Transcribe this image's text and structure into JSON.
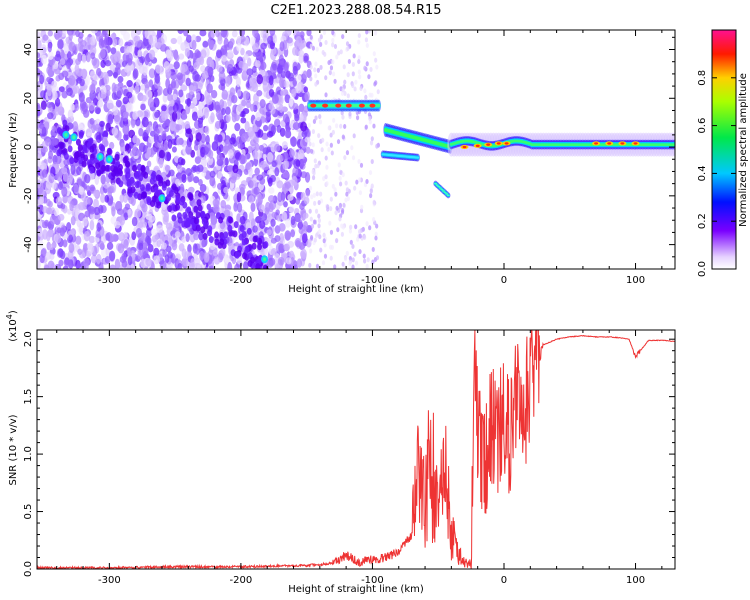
{
  "title": "C2E1.2023.288.08.54.R15",
  "chart_data": [
    {
      "type": "heatmap",
      "xlabel": "Height of straight line (km)",
      "ylabel": "Frequency (Hz)",
      "xlim": [
        -355,
        130
      ],
      "ylim": [
        -50,
        48
      ],
      "xticks": [
        -300,
        -200,
        -100,
        0,
        100
      ],
      "yticks": [
        -40,
        -20,
        0,
        20,
        40
      ],
      "colorbar": {
        "label": "Normalized spectral amplitude",
        "range": [
          0,
          1
        ],
        "ticks": [
          0.0,
          0.2,
          0.4,
          0.6,
          0.8
        ],
        "colormap": "white-purple-blue-cyan-green-yellow-red-magenta"
      },
      "features": [
        {
          "name": "scattered noise",
          "x": [
            -355,
            -148
          ],
          "y": [
            -50,
            48
          ]
        },
        {
          "name": "sparse noise",
          "x": [
            -148,
            -95
          ],
          "y": [
            -50,
            48
          ]
        },
        {
          "name": "horizontal band at 17 Hz",
          "x": [
            -148,
            -95
          ],
          "y": 17
        },
        {
          "name": "descending trace",
          "x": [
            -90,
            -40
          ],
          "y": [
            7,
            0
          ]
        },
        {
          "name": "branch trace",
          "x": [
            -52,
            -42
          ],
          "y": [
            -15,
            -20
          ]
        },
        {
          "name": "main band at 0-2 Hz",
          "x": [
            -40,
            130
          ],
          "y": [
            0,
            2
          ]
        }
      ]
    },
    {
      "type": "line",
      "xlabel": "Height of straight line (km)",
      "ylabel": "SNR (10 * v/v)",
      "yscale_label": "(x10^4)",
      "xlim": [
        -355,
        130
      ],
      "ylim": [
        0,
        2.08
      ],
      "xticks": [
        -300,
        -200,
        -100,
        0,
        100
      ],
      "yticks": [
        0.0,
        0.5,
        1.0,
        1.5,
        2.0
      ],
      "ytick_labels": [
        "0.0",
        "0.5",
        "1.0",
        "1.5",
        "2.0"
      ],
      "color": "#ee3333",
      "x": [
        -355,
        -300,
        -250,
        -200,
        -150,
        -130,
        -120,
        -110,
        -100,
        -90,
        -80,
        -70,
        -65,
        -60,
        -55,
        -50,
        -45,
        -40,
        -35,
        -30,
        -25,
        -22,
        -20,
        -15,
        -10,
        -5,
        0,
        5,
        10,
        15,
        20,
        25,
        30,
        40,
        50,
        60,
        70,
        80,
        90,
        95,
        100,
        110,
        120,
        130
      ],
      "values": [
        0.01,
        0.01,
        0.02,
        0.02,
        0.03,
        0.05,
        0.12,
        0.06,
        0.08,
        0.1,
        0.15,
        0.3,
        0.9,
        0.6,
        1.05,
        0.4,
        0.8,
        0.3,
        0.15,
        0.05,
        0.05,
        1.95,
        1.2,
        0.9,
        1.3,
        1.1,
        1.35,
        1.1,
        1.55,
        1.3,
        1.7,
        1.85,
        1.95,
        2.0,
        2.02,
        2.03,
        2.02,
        2.02,
        2.01,
        2.0,
        1.85,
        1.99,
        1.99,
        1.98
      ]
    }
  ]
}
